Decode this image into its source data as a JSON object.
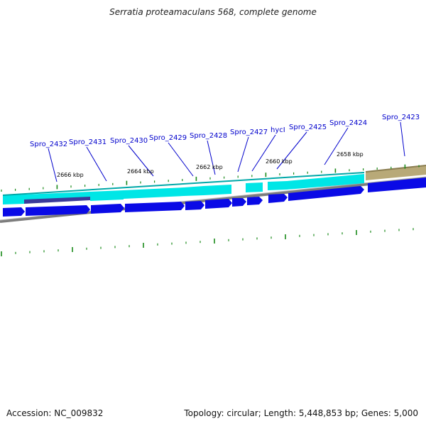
{
  "title": "Serratia proteamaculans 568, complete genome",
  "accession": "Accession: NC_009832",
  "summary": "Topology: circular; Length: 5,448,853 bp; Genes: 5,000",
  "colors": {
    "gene_label": "#0000cc",
    "cds_arrow": "#0a0ae6",
    "gene_band": "#00e6e6",
    "rna_band": "#b8a978",
    "tick": "#1a8a1a",
    "backbone": "#808080"
  },
  "gene_labels": [
    "Spro_2432",
    "Spro_2431",
    "Spro_2430",
    "Spro_2429",
    "Spro_2428",
    "Spro_2427",
    "hycI",
    "Spro_2425",
    "Spro_2424",
    "Spro_2423"
  ],
  "kbp_labels": [
    "2666 kbp",
    "2664 kbp",
    "2662 kbp",
    "2660 kbp",
    "2658 kbp"
  ]
}
